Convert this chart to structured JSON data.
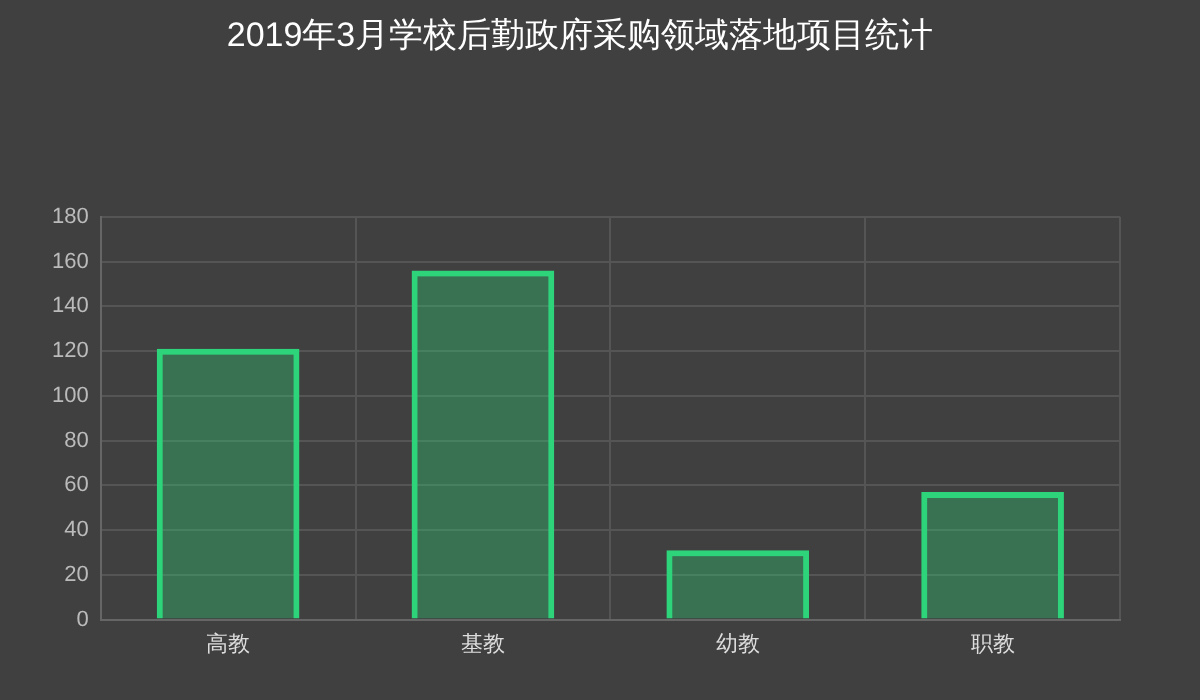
{
  "chart_data": {
    "type": "bar",
    "title": "2019年3月学校后勤政府采购领域落地项目统计",
    "categories": [
      "高教",
      "基教",
      "幼教",
      "职教"
    ],
    "series": [
      {
        "color": "#2ed47a",
        "values": [
          121,
          156,
          31,
          57
        ]
      }
    ],
    "ylim": [
      0,
      180
    ],
    "yticks": [
      0,
      20,
      40,
      60,
      80,
      100,
      120,
      140,
      160,
      180
    ],
    "grid": true
  }
}
